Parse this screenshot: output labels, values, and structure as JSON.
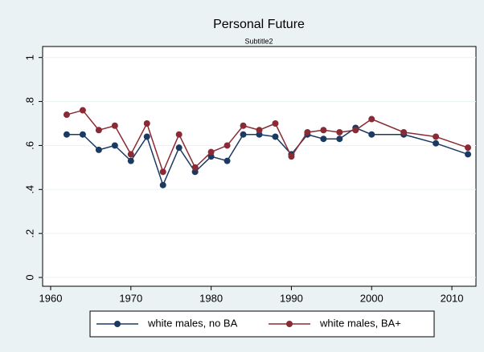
{
  "chart_data": {
    "type": "line",
    "title": "Personal Future",
    "subtitle": "Subtitle2",
    "x": [
      1962,
      1964,
      1966,
      1968,
      1970,
      1972,
      1974,
      1976,
      1978,
      1980,
      1982,
      1984,
      1986,
      1988,
      1990,
      1992,
      1994,
      1996,
      1998,
      2000,
      2004,
      2008,
      2012
    ],
    "series": [
      {
        "name": "white males, no BA",
        "color": "#1a3a63",
        "values": [
          0.65,
          0.65,
          0.58,
          0.6,
          0.53,
          0.64,
          0.42,
          0.59,
          0.48,
          0.55,
          0.53,
          0.65,
          0.65,
          0.64,
          0.56,
          0.65,
          0.63,
          0.63,
          0.68,
          0.65,
          0.65,
          0.61,
          0.56
        ]
      },
      {
        "name": "white males, BA+",
        "color": "#8b2a35",
        "values": [
          0.74,
          0.76,
          0.67,
          0.69,
          0.56,
          0.7,
          0.48,
          0.65,
          0.5,
          0.57,
          0.6,
          0.69,
          0.67,
          0.7,
          0.55,
          0.66,
          0.67,
          0.66,
          0.67,
          0.72,
          0.66,
          0.64,
          0.59
        ]
      }
    ],
    "xlim": [
      1959,
      2013
    ],
    "xticks": [
      1960,
      1970,
      1980,
      1990,
      2000,
      2010
    ],
    "ylim": [
      -0.04,
      1.05
    ],
    "yticks": [
      0,
      {
        "value": 0.2,
        "label": ".2"
      },
      {
        "value": 0.4,
        "label": ".4"
      },
      {
        "value": 0.6,
        "label": ".6"
      },
      {
        "value": 0.8,
        "label": ".8"
      },
      1
    ],
    "grid": true
  }
}
